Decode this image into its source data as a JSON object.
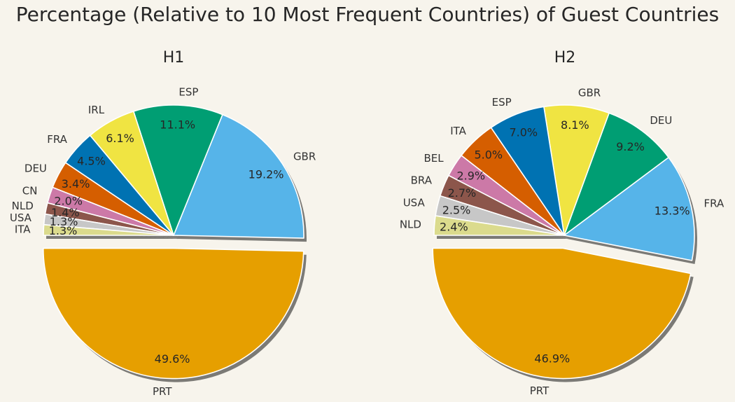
{
  "title": "Percentage (Relative to 10 Most Frequent Countries) of Guest Countries",
  "chart_data": [
    {
      "type": "pie",
      "title": "H1",
      "categories": [
        "PRT",
        "GBR",
        "ESP",
        "IRL",
        "FRA",
        "DEU",
        "CN",
        "NLD",
        "USA",
        "ITA"
      ],
      "values": [
        49.6,
        19.2,
        11.1,
        6.1,
        4.5,
        3.4,
        2.0,
        1.4,
        1.3,
        1.3
      ],
      "value_labels": [
        "49.6%",
        "19.2%",
        "11.1%",
        "6.1%",
        "4.5%",
        "3.4%",
        "2.0%",
        "1.4%",
        "1.3%",
        "1.3%"
      ],
      "colors": [
        "#e69f00",
        "#56b4e9",
        "#009e73",
        "#f0e442",
        "#0072b2",
        "#d55e00",
        "#cc79a7",
        "#8c564b",
        "#c7c7c7",
        "#dbdb8d"
      ],
      "exploded": [
        "PRT"
      ],
      "shadow": true
    },
    {
      "type": "pie",
      "title": "H2",
      "categories": [
        "PRT",
        "FRA",
        "DEU",
        "GBR",
        "ESP",
        "ITA",
        "BEL",
        "BRA",
        "USA",
        "NLD"
      ],
      "values": [
        46.9,
        13.3,
        9.2,
        8.1,
        7.0,
        5.0,
        2.9,
        2.7,
        2.5,
        2.4
      ],
      "value_labels": [
        "46.9%",
        "13.3%",
        "9.2%",
        "8.1%",
        "7.0%",
        "5.0%",
        "2.9%",
        "2.7%",
        "2.5%",
        "2.4%"
      ],
      "colors": [
        "#e69f00",
        "#56b4e9",
        "#009e73",
        "#f0e442",
        "#0072b2",
        "#d55e00",
        "#cc79a7",
        "#8c564b",
        "#c7c7c7",
        "#dbdb8d"
      ],
      "exploded": [
        "PRT"
      ],
      "shadow": true
    }
  ]
}
